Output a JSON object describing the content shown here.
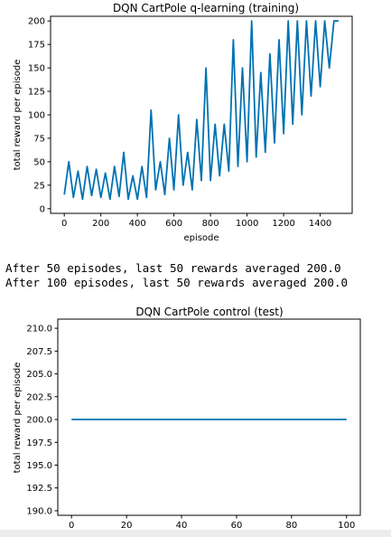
{
  "chart_data": [
    {
      "type": "line",
      "title": "DQN CartPole q-learning (training)",
      "xlabel": "episode",
      "ylabel": "total reward per episode",
      "xlim": [
        -75,
        1575
      ],
      "ylim": [
        -5,
        205
      ],
      "xticks": [
        0,
        200,
        400,
        600,
        800,
        1000,
        1200,
        1400
      ],
      "yticks": [
        0,
        25,
        50,
        75,
        100,
        125,
        150,
        175,
        200
      ],
      "grid": false,
      "color": "#0072b2",
      "series": [
        {
          "x": [
            0,
            25,
            50,
            75,
            100,
            125,
            150,
            175,
            200,
            225,
            250,
            275,
            300,
            325,
            350,
            375,
            400,
            425,
            450,
            475,
            500,
            525,
            550,
            575,
            600,
            625,
            650,
            675,
            700,
            725,
            750,
            775,
            800,
            825,
            850,
            875,
            900,
            925,
            950,
            975,
            1000,
            1025,
            1050,
            1075,
            1100,
            1125,
            1150,
            1175,
            1200,
            1225,
            1250,
            1275,
            1300,
            1325,
            1350,
            1375,
            1400,
            1425,
            1450,
            1475,
            1500
          ],
          "y": [
            15,
            50,
            12,
            40,
            10,
            45,
            14,
            42,
            12,
            38,
            10,
            45,
            13,
            60,
            10,
            35,
            10,
            45,
            12,
            105,
            20,
            50,
            15,
            75,
            20,
            100,
            25,
            60,
            20,
            95,
            30,
            150,
            30,
            90,
            35,
            90,
            40,
            180,
            45,
            150,
            50,
            200,
            55,
            145,
            60,
            165,
            70,
            180,
            80,
            200,
            90,
            200,
            100,
            200,
            120,
            200,
            130,
            200,
            150,
            200,
            200
          ]
        }
      ]
    },
    {
      "type": "line",
      "title": "DQN CartPole control (test)",
      "xlabel": "",
      "ylabel": "total reward per episode",
      "xlim": [
        -5,
        105
      ],
      "ylim": [
        189.5,
        211
      ],
      "xticks": [
        0,
        20,
        40,
        60,
        80,
        100
      ],
      "yticks": [
        190.0,
        192.5,
        195.0,
        197.5,
        200.0,
        202.5,
        205.0,
        207.5,
        210.0
      ],
      "grid": false,
      "color": "#0072b2",
      "series": [
        {
          "x": [
            0,
            100
          ],
          "y": [
            200,
            200
          ]
        }
      ]
    }
  ],
  "output_text": {
    "line1": "After 50 episodes, last 50 rewards averaged 200.0",
    "line2": "After 100 episodes, last 50 rewards averaged 200.0"
  }
}
